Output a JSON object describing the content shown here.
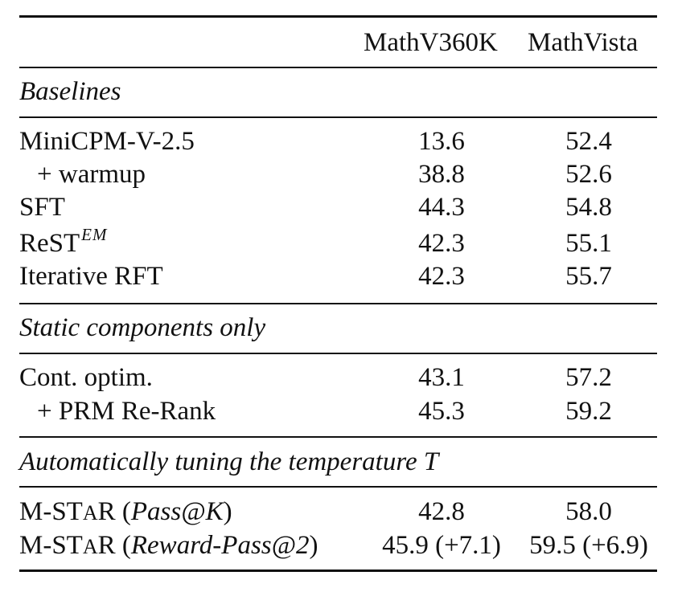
{
  "header": {
    "col1": "MathV360K",
    "col2": "MathVista"
  },
  "sections": [
    {
      "title": "Baselines",
      "rows": [
        {
          "label": "MiniCPM-V-2.5",
          "v1": "13.6",
          "v2": "52.4"
        },
        {
          "label": "+ warmup",
          "v1": "38.8",
          "v2": "52.6"
        },
        {
          "label": "SFT",
          "v1": "44.3",
          "v2": "54.8"
        },
        {
          "label": "ReST",
          "label_sup": "EM",
          "v1": "42.3",
          "v2": "55.1"
        },
        {
          "label": "Iterative RFT",
          "v1": "42.3",
          "v2": "55.7"
        }
      ]
    },
    {
      "title": "Static components only",
      "rows": [
        {
          "label": "Cont. optim.",
          "v1": "43.1",
          "v2": "57.2"
        },
        {
          "label": "+ PRM Re-Rank",
          "v1": "45.3",
          "v2": "59.2"
        }
      ]
    },
    {
      "title": "Automatically tuning the temperature T",
      "rows": [
        {
          "label_pre": "M-ST",
          "label_sc": "A",
          "label_r": "R (",
          "label_it": "Pass@K",
          "label_post": ")",
          "v1": "42.8",
          "v2": "58.0"
        },
        {
          "label_pre": "M-ST",
          "label_sc": "A",
          "label_r": "R (",
          "label_it": "Reward-Pass@2",
          "label_post": ")",
          "v1": "45.9 (+7.1)",
          "v2": "59.5 (+6.9)"
        }
      ]
    }
  ]
}
